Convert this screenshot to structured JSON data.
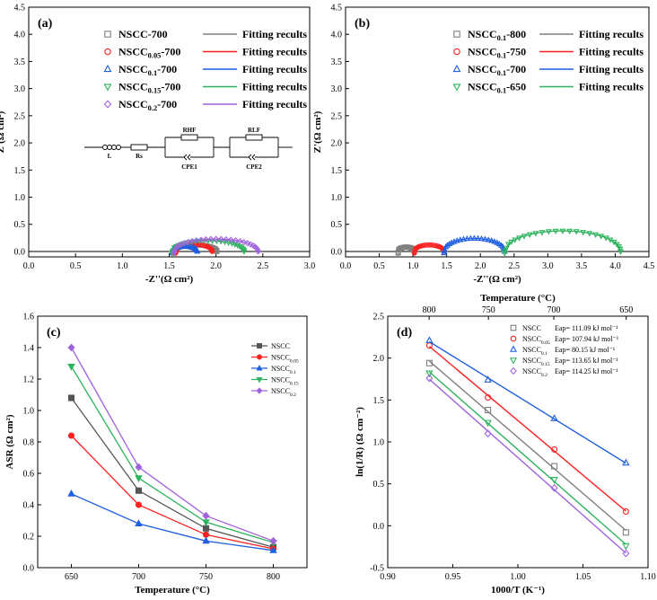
{
  "chart_data": [
    {
      "panel": "(a)",
      "type": "scatter",
      "xlabel": "-Z''(Ω cm²)",
      "ylabel": "Z'(Ω cm²)",
      "xlim": [
        0.0,
        3.0
      ],
      "ylim": [
        -0.1,
        4.5
      ],
      "xticks": [
        "0.0",
        "0.5",
        "1.0",
        "1.5",
        "2.0",
        "2.5",
        "3.0"
      ],
      "yticks": [
        "0.0",
        "0.5",
        "1.0",
        "1.5",
        "2.0",
        "2.5",
        "3.0",
        "3.5",
        "4.0",
        "4.5"
      ],
      "fit_legend_label": "Fitting recults",
      "series": [
        {
          "name": "NSCC-700",
          "sub": "",
          "tail": "-700",
          "color": "#808080",
          "marker": "square",
          "r0": 1.55,
          "r1": 2.01,
          "h": 0.12
        },
        {
          "name": "NSCC0.05-700",
          "sub": "0.05",
          "tail": "-700",
          "color": "#ff1f1f",
          "marker": "circle",
          "r0": 1.57,
          "r1": 1.96,
          "h": 0.13
        },
        {
          "name": "NSCC0.1-700",
          "sub": "0.1",
          "tail": "-700",
          "color": "#1f5fe0",
          "marker": "triangle",
          "r0": 1.53,
          "r1": 1.8,
          "h": 0.09
        },
        {
          "name": "NSCC0.15-700",
          "sub": "0.15",
          "tail": "-700",
          "color": "#2db35d",
          "marker": "tridown",
          "r0": 1.53,
          "r1": 2.3,
          "h": 0.2
        },
        {
          "name": "NSCC0.2-700",
          "sub": "0.2",
          "tail": "-700",
          "color": "#a063dc",
          "marker": "diamond",
          "r0": 1.55,
          "r1": 2.45,
          "h": 0.23
        }
      ],
      "circuit": {
        "l": "L",
        "rs": "Rs",
        "r1": "RHF",
        "r2": "RLF",
        "c1": "CPE1",
        "c2": "CPE2"
      }
    },
    {
      "panel": "(b)",
      "type": "scatter",
      "xlabel": "-Z''(Ω cm²)",
      "ylabel": "Z'(Ω cm²)",
      "xlim": [
        0.0,
        4.5
      ],
      "ylim": [
        -0.1,
        4.5
      ],
      "xticks": [
        "0.0",
        "0.5",
        "1.0",
        "1.5",
        "2.0",
        "2.5",
        "3.0",
        "3.5",
        "4.0",
        "4.5"
      ],
      "yticks": [
        "0.0",
        "0.5",
        "1.0",
        "1.5",
        "2.0",
        "2.5",
        "3.0",
        "3.5",
        "4.0",
        "4.5"
      ],
      "fit_legend_label": "Fitting recults",
      "series": [
        {
          "name": "NSCC0.1-800",
          "sub": "0.1",
          "tail": "-800",
          "color": "#808080",
          "marker": "square",
          "r0": 0.78,
          "r1": 1.02,
          "h": 0.08
        },
        {
          "name": "NSCC0.1-750",
          "sub": "0.1",
          "tail": "-750",
          "color": "#ff1f1f",
          "marker": "circle",
          "r0": 1.02,
          "r1": 1.46,
          "h": 0.12
        },
        {
          "name": "NSCC0.1-700",
          "sub": "0.1",
          "tail": "-700",
          "color": "#1f5fe0",
          "marker": "triangle",
          "r0": 1.46,
          "r1": 2.36,
          "h": 0.24
        },
        {
          "name": "NSCC0.1-650",
          "sub": "0.1",
          "tail": "-650",
          "color": "#2db35d",
          "marker": "tridown",
          "r0": 2.36,
          "r1": 4.08,
          "h": 0.38
        }
      ]
    },
    {
      "panel": "(c)",
      "type": "line",
      "xlabel": "Temperature (°C)",
      "ylabel": "ASR (Ω cm²)",
      "x": [
        650,
        700,
        750,
        800
      ],
      "xlim": [
        625,
        825
      ],
      "ylim": [
        0.0,
        1.6
      ],
      "xticks": [
        "650",
        "700",
        "750",
        "800"
      ],
      "yticks": [
        "0.0",
        "0.2",
        "0.4",
        "0.6",
        "0.8",
        "1.0",
        "1.2",
        "1.4",
        "1.6"
      ],
      "series": [
        {
          "name": "NSCC",
          "base": "NSCC",
          "sub": "",
          "color": "#555555",
          "marker": "square",
          "values": [
            1.08,
            0.49,
            0.25,
            0.13
          ]
        },
        {
          "name": "NSCC0.05",
          "base": "NSCC",
          "sub": "0.05",
          "color": "#ff2020",
          "marker": "circle",
          "values": [
            0.84,
            0.4,
            0.21,
            0.12
          ]
        },
        {
          "name": "NSCC0.1",
          "base": "NSCC",
          "sub": "0.1",
          "color": "#1f5fe0",
          "marker": "triangle",
          "values": [
            0.47,
            0.28,
            0.17,
            0.11
          ]
        },
        {
          "name": "NSCC0.15",
          "base": "NSCC",
          "sub": "0.15",
          "color": "#2db35d",
          "marker": "tridown",
          "values": [
            1.28,
            0.57,
            0.29,
            0.16
          ]
        },
        {
          "name": "NSCC0.2",
          "base": "NSCC",
          "sub": "0.2",
          "color": "#a063dc",
          "marker": "diamond",
          "values": [
            1.4,
            0.64,
            0.33,
            0.17
          ]
        }
      ]
    },
    {
      "panel": "(d)",
      "type": "scatter",
      "xlabel": "1000/T (K⁻¹)",
      "ylabel": "ln(1/R) (Ω cm⁻²)",
      "top_xlabel": "Temperature (°C)",
      "top_ticks": [
        {
          "value": 800,
          "label": "800"
        },
        {
          "value": 750,
          "label": "750"
        },
        {
          "value": 700,
          "label": "700"
        },
        {
          "value": 650,
          "label": "650"
        }
      ],
      "x": [
        0.932,
        0.977,
        1.028,
        1.083
      ],
      "xlim": [
        0.9,
        1.1
      ],
      "ylim": [
        -0.5,
        2.5
      ],
      "xticks": [
        "0.90",
        "0.95",
        "1.00",
        "1.05",
        "1.10"
      ],
      "yticks": [
        "-0.5",
        "0.0",
        "0.5",
        "1.0",
        "1.5",
        "2.0",
        "2.5"
      ],
      "series": [
        {
          "name": "NSCC",
          "base": "NSCC",
          "sub": "",
          "ea": "Eap= 111.09 kJ mol⁻¹",
          "color": "#808080",
          "marker": "square",
          "values": [
            1.94,
            1.38,
            0.71,
            -0.08
          ]
        },
        {
          "name": "NSCC0.05",
          "base": "NSCC",
          "sub": "0.05",
          "ea": "Eap= 107.94 kJ mol⁻¹",
          "color": "#ff1f1f",
          "marker": "circle",
          "values": [
            2.15,
            1.53,
            0.91,
            0.17
          ]
        },
        {
          "name": "NSCC0.1",
          "base": "NSCC",
          "sub": "0.1",
          "ea": "Eap= 80.15 kJ mol⁻¹",
          "color": "#1f5fe0",
          "marker": "triangle",
          "values": [
            2.21,
            1.74,
            1.28,
            0.75
          ]
        },
        {
          "name": "NSCC0.15",
          "base": "NSCC",
          "sub": "0.15",
          "ea": "Eap= 113.65 kJ mol⁻¹",
          "color": "#2db35d",
          "marker": "tridown",
          "values": [
            1.82,
            1.23,
            0.55,
            -0.24
          ]
        },
        {
          "name": "NSCC0.2",
          "base": "NSCC",
          "sub": "0.2",
          "ea": "Eap= 114.25 kJ mol⁻¹",
          "color": "#a063dc",
          "marker": "diamond",
          "values": [
            1.76,
            1.1,
            0.45,
            -0.33
          ]
        }
      ]
    }
  ]
}
